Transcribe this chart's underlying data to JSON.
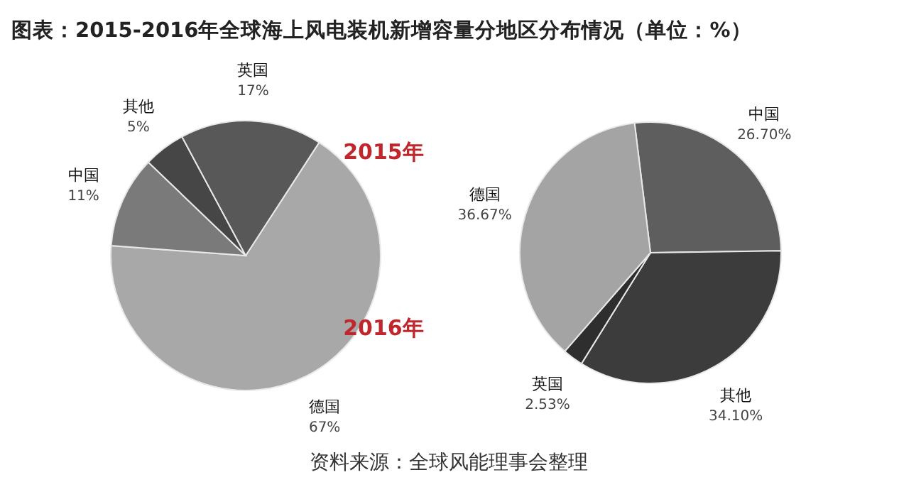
{
  "chart_data": [
    {
      "type": "pie",
      "title": "2015年",
      "annotations": [
        "图表：2015-2016年全球海上风电装机新增容量分地区分布情况（单位：%）"
      ],
      "categories": [
        "德国",
        "中国",
        "其他",
        "英国"
      ],
      "values": [
        67,
        11,
        5,
        17
      ],
      "value_labels": [
        "67%",
        "11%",
        "5%",
        "17%"
      ],
      "colors": [
        "#a8a8a8",
        "#7a7a7a",
        "#464646",
        "#585858"
      ]
    },
    {
      "type": "pie",
      "title": "2016年",
      "annotations": [
        "资料来源：全球风能理事会整理"
      ],
      "categories": [
        "中国",
        "其他",
        "英国",
        "德国"
      ],
      "values": [
        26.7,
        34.1,
        2.53,
        36.67
      ],
      "value_labels": [
        "26.70%",
        "34.10%",
        "2.53%",
        "36.67%"
      ],
      "colors": [
        "#5e5e5e",
        "#3c3c3c",
        "#2e2e2e",
        "#a4a4a4"
      ]
    }
  ]
}
